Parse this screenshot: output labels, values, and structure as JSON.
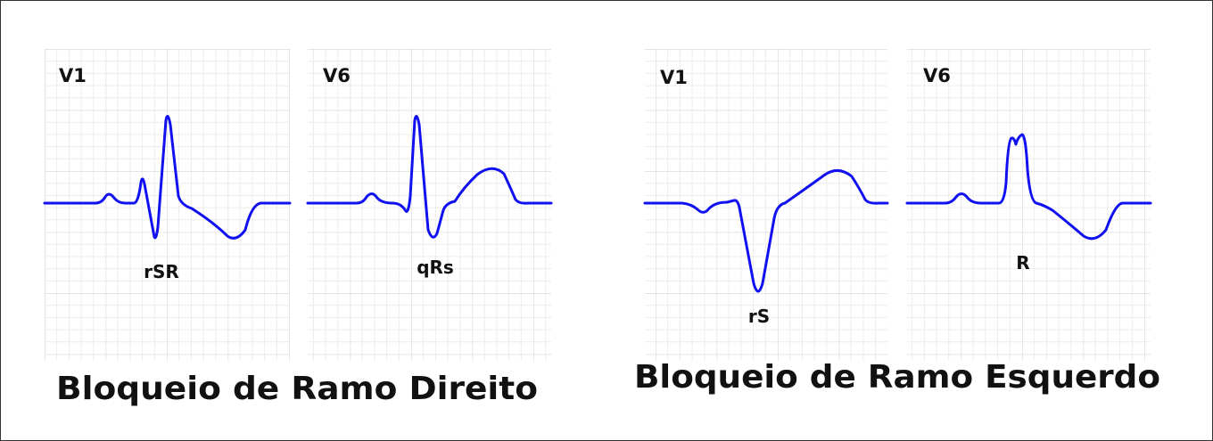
{
  "groups": [
    {
      "title": "Bloqueio de Ramo Direito",
      "panels": [
        {
          "lead": "V1",
          "pattern": "rSR"
        },
        {
          "lead": "V6",
          "pattern": "qRs"
        }
      ]
    },
    {
      "title": "Bloqueio de Ramo Esquerdo",
      "panels": [
        {
          "lead": "V1",
          "pattern": "rS"
        },
        {
          "lead": "V6",
          "pattern": "R"
        }
      ]
    }
  ]
}
